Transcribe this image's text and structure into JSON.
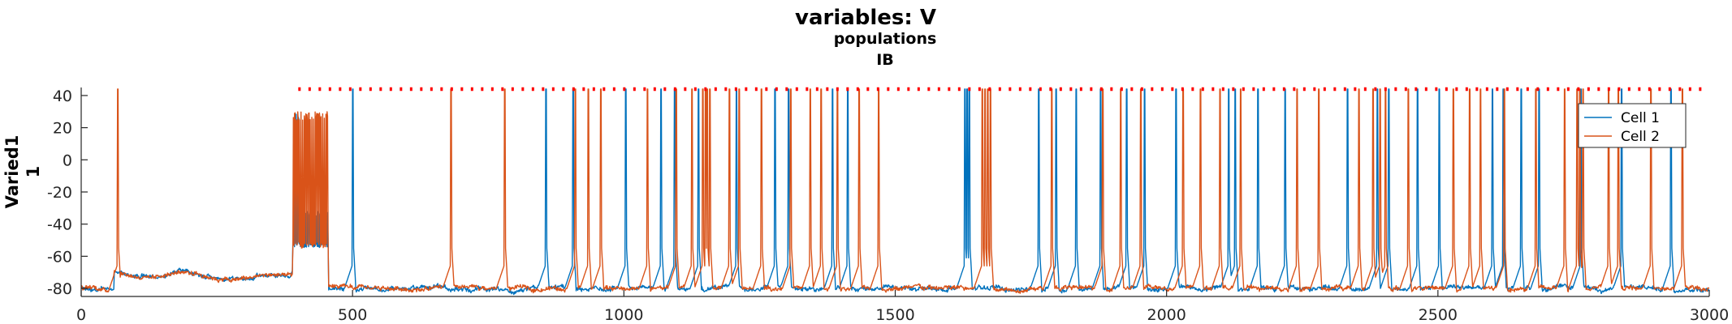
{
  "chart_data": {
    "type": "line",
    "title": "variables: V",
    "subtitle_lines": [
      "populations",
      "IB"
    ],
    "ylabel_lines": [
      "Varied1",
      "1"
    ],
    "xlabel": "",
    "xlim": [
      0,
      3000
    ],
    "ylim": [
      -85,
      45
    ],
    "x_ticks": [
      0,
      500,
      1000,
      1500,
      2000,
      2500,
      3000
    ],
    "y_ticks": [
      -80,
      -60,
      -40,
      -20,
      0,
      20,
      40
    ],
    "grid": false,
    "legend_position": "top-right",
    "series": [
      {
        "name": "Cell 1",
        "color": "#0072BD",
        "resting_mV": -80,
        "burst_mV": [
          -55,
          30
        ],
        "spike_times_ms": [
          393,
          401,
          500,
          856,
          906,
          1003,
          1068,
          1093,
          1137,
          1207,
          1278,
          1303,
          1384,
          1412,
          1628,
          1632,
          1636,
          1764,
          1796,
          1833,
          1878,
          1926,
          1959,
          2017,
          2114,
          2126,
          2168,
          2218,
          2333,
          2388,
          2409,
          2462,
          2502,
          2600,
          2620,
          2653,
          2686,
          2763,
          2838,
          2929
        ]
      },
      {
        "name": "Cell 2",
        "color": "#D95319",
        "resting_mV": -80,
        "burst_mV": [
          -55,
          30
        ],
        "spike_times_ms": [
          67,
          681,
          780,
          910,
          934,
          957,
          1043,
          1096,
          1125,
          1145,
          1150,
          1153,
          1158,
          1194,
          1212,
          1253,
          1307,
          1343,
          1363,
          1393,
          1433,
          1469,
          1660,
          1665,
          1670,
          1675,
          1788,
          1882,
          1915,
          1952,
          2030,
          2062,
          2098,
          2136,
          2240,
          2280,
          2354,
          2380,
          2393,
          2403,
          2445,
          2528,
          2558,
          2578,
          2622,
          2680,
          2733,
          2756,
          2761,
          2767,
          2814,
          2832,
          2892,
          2950
        ]
      }
    ],
    "burst_window_ms": [
      390,
      455
    ],
    "threshold_marker": {
      "y": 44,
      "x_range": [
        400,
        2990
      ],
      "color": "#FF0000",
      "style": "dotted"
    }
  }
}
